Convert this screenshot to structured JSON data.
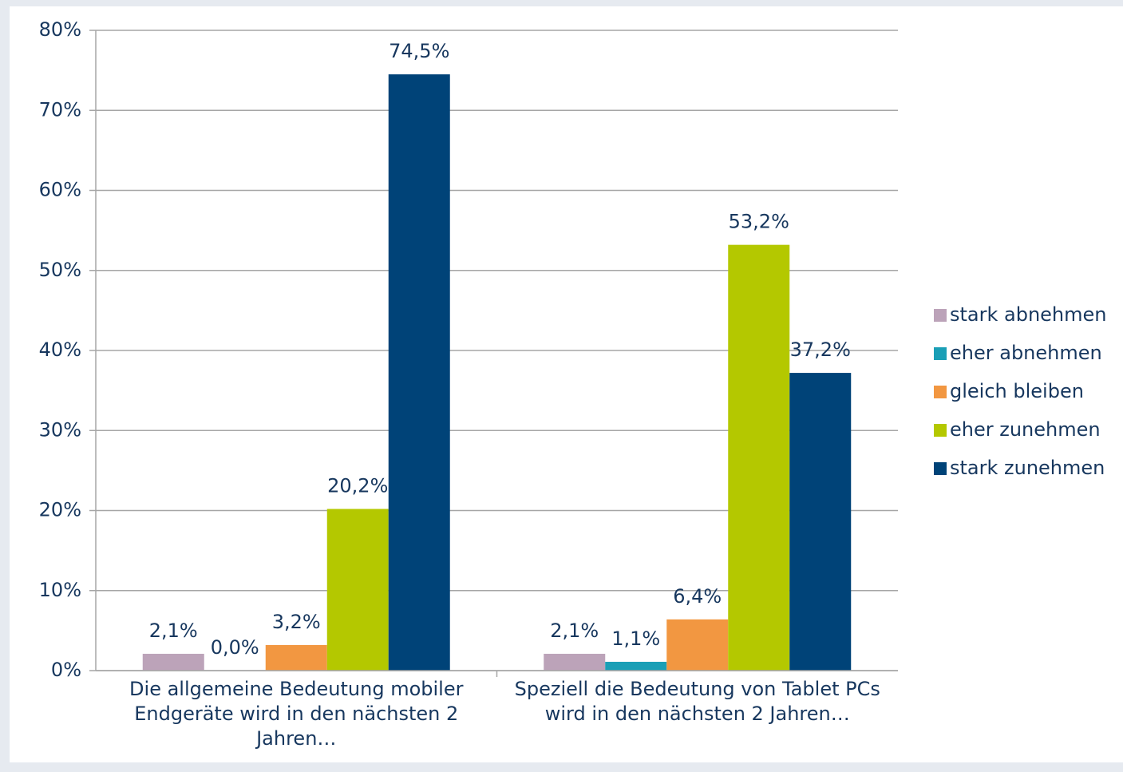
{
  "chart_data": {
    "type": "bar",
    "categories": [
      "Die allgemeine Bedeutung mobiler Endgeräte wird in den nächsten 2 Jahren…",
      "Speziell die Bedeutung von Tablet PCs wird in den nächsten 2 Jahren…"
    ],
    "series": [
      {
        "name": "stark abnehmen",
        "color": "#bca3b9",
        "values": [
          2.1,
          2.1
        ],
        "value_labels": [
          "2,1%",
          "2,1%"
        ]
      },
      {
        "name": "eher abnehmen",
        "color": "#1a9fb6",
        "values": [
          0.0,
          1.1
        ],
        "value_labels": [
          "0,0%",
          "1,1%"
        ]
      },
      {
        "name": "gleich bleiben",
        "color": "#f29741",
        "values": [
          3.2,
          6.4
        ],
        "value_labels": [
          "3,2%",
          "6,4%"
        ]
      },
      {
        "name": "eher zunehmen",
        "color": "#b4c800",
        "values": [
          20.2,
          53.2
        ],
        "value_labels": [
          "20,2%",
          "53,2%"
        ]
      },
      {
        "name": "stark zunehmen",
        "color": "#004378",
        "values": [
          74.5,
          37.2
        ],
        "value_labels": [
          "74,5%",
          "37,2%"
        ]
      }
    ],
    "ylim": [
      0,
      80
    ],
    "yticks": [
      {
        "value": 0,
        "label": "0%"
      },
      {
        "value": 10,
        "label": "10%"
      },
      {
        "value": 20,
        "label": "20%"
      },
      {
        "value": 30,
        "label": "30%"
      },
      {
        "value": 40,
        "label": "40%"
      },
      {
        "value": 50,
        "label": "50%"
      },
      {
        "value": 60,
        "label": "60%"
      },
      {
        "value": 70,
        "label": "70%"
      },
      {
        "value": 80,
        "label": "80%"
      }
    ],
    "grid": true,
    "legend": "right"
  }
}
